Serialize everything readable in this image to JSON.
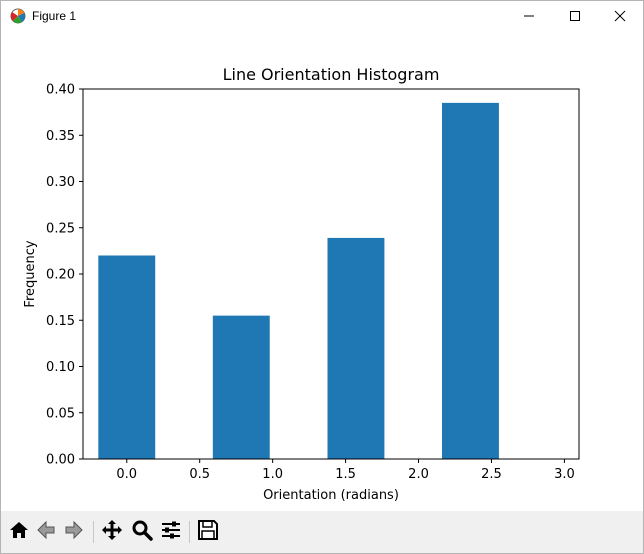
{
  "window": {
    "title": "Figure 1",
    "icons": {
      "app": "matplotlib-figure-icon",
      "minimize": "minimize-icon",
      "maximize": "maximize-icon",
      "close": "close-icon"
    }
  },
  "toolbar": {
    "items": [
      {
        "name": "home-icon"
      },
      {
        "name": "back-arrow-icon"
      },
      {
        "name": "forward-arrow-icon"
      },
      {
        "name": "pan-move-icon"
      },
      {
        "name": "zoom-magnifier-icon"
      },
      {
        "name": "configure-subplots-icon"
      },
      {
        "name": "save-floppy-icon"
      }
    ]
  },
  "chart_data": {
    "type": "bar",
    "title": "Line Orientation Histogram",
    "xlabel": "Orientation (radians)",
    "ylabel": "Frequency",
    "x": [
      0.0,
      0.785,
      1.571,
      2.356
    ],
    "values": [
      0.22,
      0.155,
      0.239,
      0.385
    ],
    "bar_width": 0.39,
    "xlim": [
      -0.3,
      3.1
    ],
    "ylim": [
      0.0,
      0.4
    ],
    "xticks": [
      "0.0",
      "0.5",
      "1.0",
      "1.5",
      "2.0",
      "2.5",
      "3.0"
    ],
    "yticks": [
      "0.00",
      "0.05",
      "0.10",
      "0.15",
      "0.20",
      "0.25",
      "0.30",
      "0.35",
      "0.40"
    ],
    "bar_color": "#1f77b4",
    "grid": false,
    "legend": null
  }
}
